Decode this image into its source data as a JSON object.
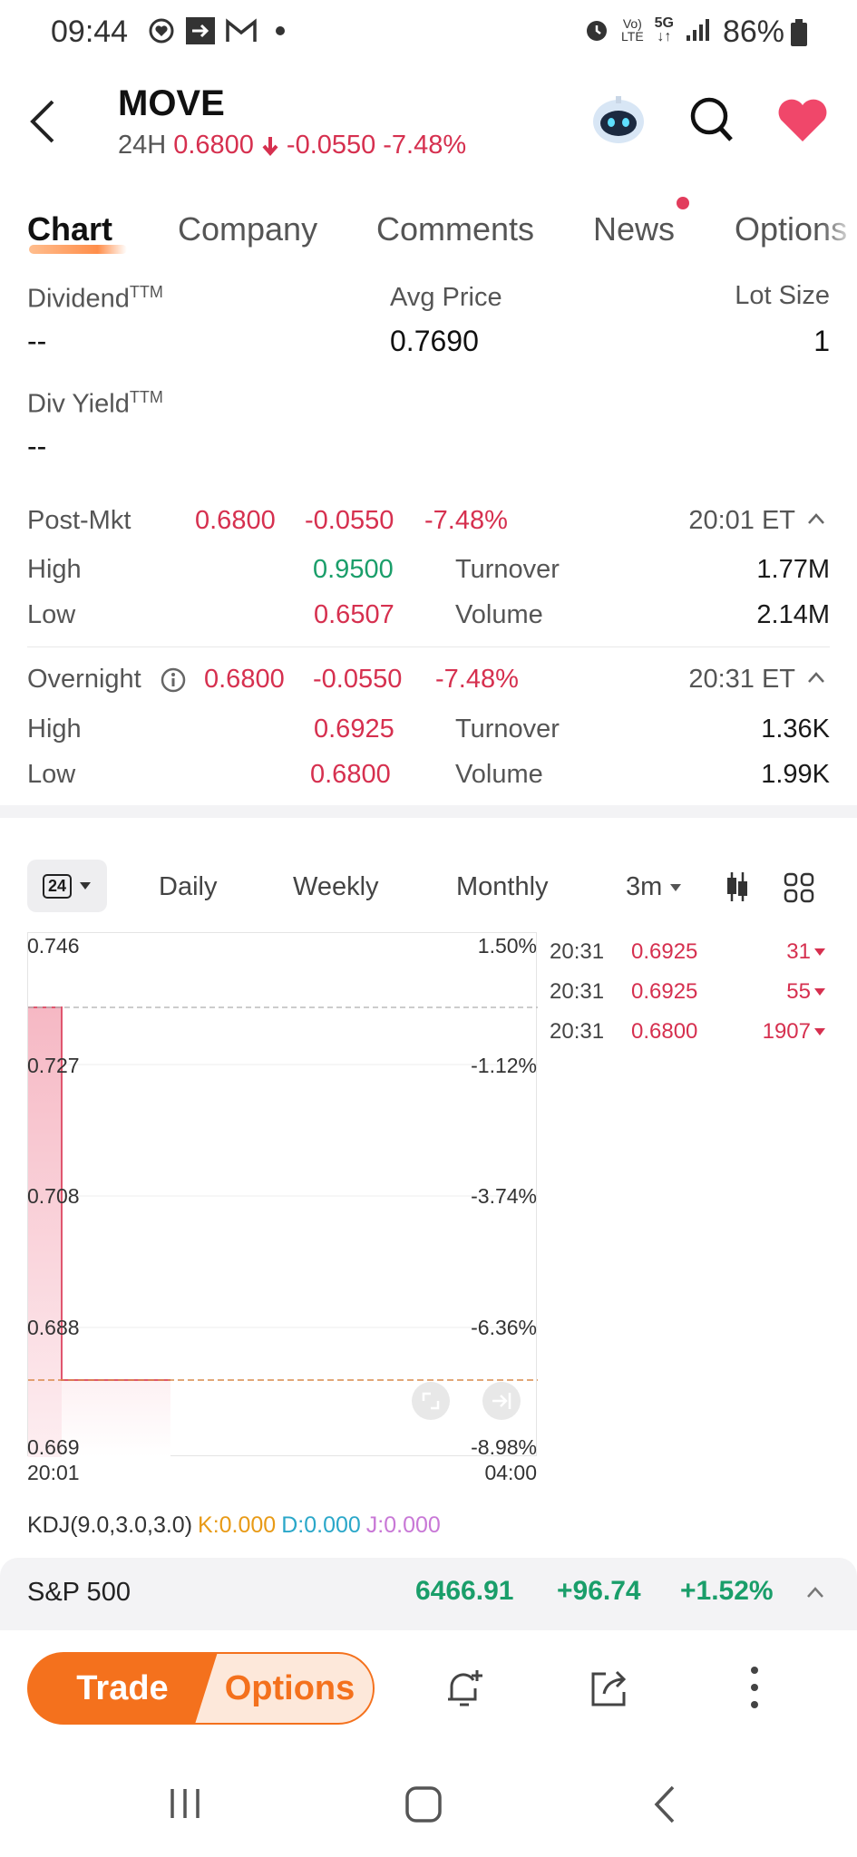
{
  "status_bar": {
    "time": "09:44",
    "battery": "86%"
  },
  "header": {
    "ticker": "MOVE",
    "session": "24H",
    "price": "0.6800",
    "change": "-0.0550",
    "change_pct": "-7.48%"
  },
  "tabs": [
    "Chart",
    "Company",
    "Comments",
    "News",
    "Options"
  ],
  "stats": {
    "dividend_label": "Dividend",
    "dividend_sup": "TTM",
    "dividend_value": "--",
    "avg_price_label": "Avg Price",
    "avg_price_value": "0.7690",
    "lot_size_label": "Lot Size",
    "lot_size_value": "1",
    "div_yield_label": "Div Yield",
    "div_yield_sup": "TTM",
    "div_yield_value": "--"
  },
  "post_market": {
    "label": "Post-Mkt",
    "price": "0.6800",
    "change": "-0.0550",
    "change_pct": "-7.48%",
    "time": "20:01 ET",
    "high_label": "High",
    "high": "0.9500",
    "low_label": "Low",
    "low": "0.6507",
    "turnover_label": "Turnover",
    "turnover": "1.77M",
    "volume_label": "Volume",
    "volume": "2.14M"
  },
  "overnight": {
    "label": "Overnight",
    "price": "0.6800",
    "change": "-0.0550",
    "change_pct": "-7.48%",
    "time": "20:31 ET",
    "high_label": "High",
    "high": "0.6925",
    "low_label": "Low",
    "low": "0.6800",
    "turnover_label": "Turnover",
    "turnover": "1.36K",
    "volume_label": "Volume",
    "volume": "1.99K"
  },
  "chart_controls": {
    "session_badge": "24",
    "periods": [
      "Daily",
      "Weekly",
      "Monthly"
    ],
    "interval": "3m"
  },
  "chart": {
    "y_left": [
      "0.746",
      "0.727",
      "0.708",
      "0.688",
      "0.669"
    ],
    "y_right": [
      "1.50%",
      "-1.12%",
      "-3.74%",
      "-6.36%",
      "-8.98%"
    ],
    "x_labels": [
      "20:01",
      "04:00"
    ],
    "indicator": "KDJ(9.0,3.0,3.0)",
    "k": "K:0.000",
    "d": "D:0.000",
    "j": "J:0.000"
  },
  "ticks": [
    {
      "time": "20:31",
      "price": "0.6925",
      "volume": "31"
    },
    {
      "time": "20:31",
      "price": "0.6925",
      "volume": "55"
    },
    {
      "time": "20:31",
      "price": "0.6800",
      "volume": "1907"
    }
  ],
  "index_bar": {
    "name": "S&P 500",
    "value": "6466.91",
    "change": "+96.74",
    "change_pct": "+1.52%"
  },
  "actions": {
    "trade": "Trade",
    "options": "Options"
  },
  "colors": {
    "down": "#d6304f",
    "up": "#1a9e6a",
    "accent": "#f4711d"
  }
}
